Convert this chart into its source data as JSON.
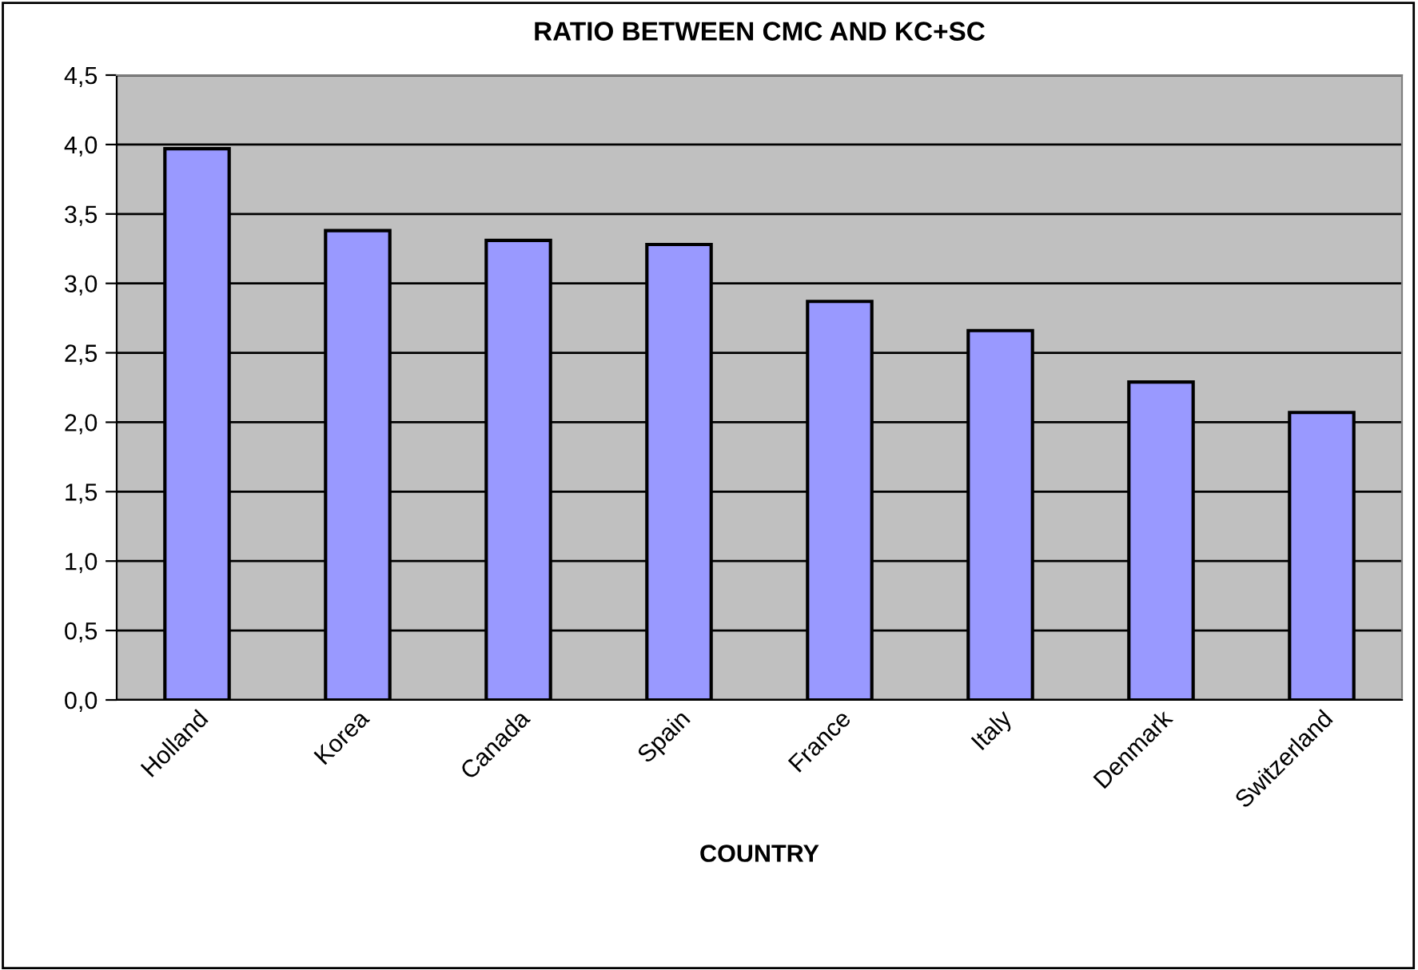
{
  "chart_data": {
    "type": "bar",
    "title": "RATIO BETWEEN CMC AND KC+SC",
    "xlabel": "COUNTRY",
    "categories": [
      "Holland",
      "Korea",
      "Canada",
      "Spain",
      "France",
      "Italy",
      "Denmark",
      "Switzerland"
    ],
    "values": [
      3.97,
      3.38,
      3.31,
      3.28,
      2.87,
      2.66,
      2.29,
      2.07
    ],
    "color": "#9999ff",
    "ylim": [
      0,
      4.5
    ],
    "yticks": [
      {
        "value": 0,
        "label": "0,0"
      },
      {
        "value": 0.5,
        "label": "0,5"
      },
      {
        "value": 1,
        "label": "1,0"
      },
      {
        "value": 1.5,
        "label": "1,5"
      },
      {
        "value": 2,
        "label": "2,0"
      },
      {
        "value": 2.5,
        "label": "2,5"
      },
      {
        "value": 3,
        "label": "3,0"
      },
      {
        "value": 3.5,
        "label": "3,5"
      },
      {
        "value": 4,
        "label": "4,0"
      },
      {
        "value": 4.5,
        "label": "4,5"
      }
    ],
    "grid": "y",
    "legend": false
  }
}
